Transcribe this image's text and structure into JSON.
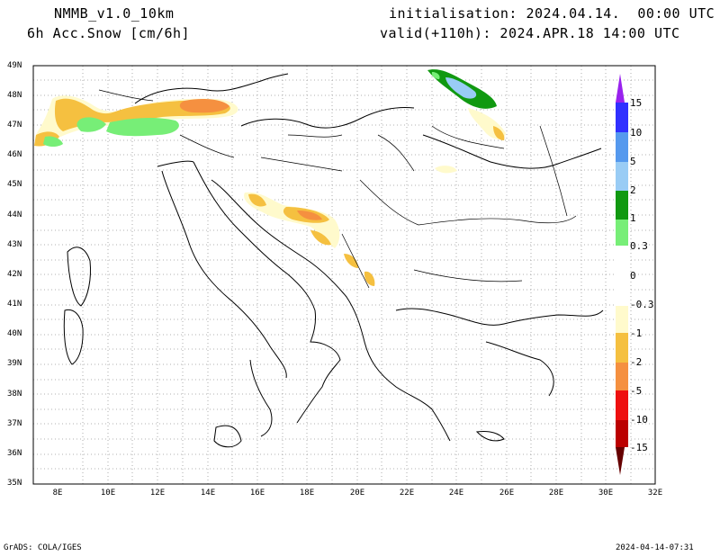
{
  "header": {
    "model": "NMMB_v1.0_10km",
    "product": "6h Acc.Snow [cm/6h]",
    "initialisation": "initialisation: 2024.04.14.  00:00 UTC",
    "valid": "valid(+110h): 2024.APR.18 14:00 UTC"
  },
  "map": {
    "lat_labels": [
      "49N",
      "48N",
      "47N",
      "46N",
      "45N",
      "44N",
      "43N",
      "42N",
      "41N",
      "40N",
      "39N",
      "38N",
      "37N",
      "36N",
      "35N"
    ],
    "lon_labels": [
      "8E",
      "10E",
      "12E",
      "14E",
      "16E",
      "18E",
      "20E",
      "22E",
      "24E",
      "26E",
      "28E",
      "30E",
      "32E"
    ]
  },
  "colorbar": {
    "labels": [
      "15",
      "10",
      "5",
      "2",
      "1",
      "0.3",
      "0",
      "-0.3",
      "-1",
      "-2",
      "-5",
      "-10",
      "-15"
    ],
    "colors": [
      "#3030ff",
      "#5599ee",
      "#99ccf5",
      "#119911",
      "#77ee77",
      "#ffffff",
      "#ffffff",
      "#fffacc",
      "#f5c040",
      "#f59040",
      "#ee1010",
      "#bb0000",
      "#770000"
    ],
    "top_arrow_color": "#9922ee",
    "bottom_arrow_color": "#660000"
  },
  "footer": {
    "left": "GrADS: COLA/IGES",
    "right": "2024-04-14-07:31"
  }
}
